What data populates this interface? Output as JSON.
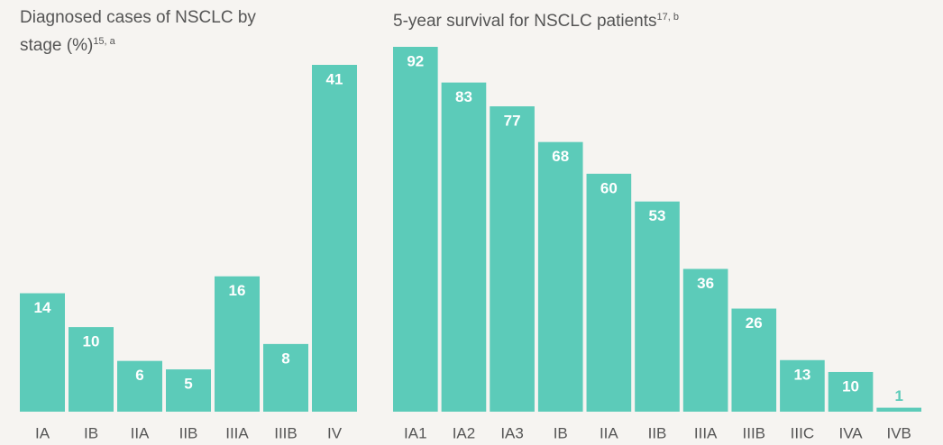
{
  "chart_data": [
    {
      "type": "bar",
      "title": "Diagnosed cases of NSCLC by stage (%)",
      "title_superscript": "15, a",
      "categories": [
        "IA",
        "IB",
        "IIA",
        "IIB",
        "IIIA",
        "IIIB",
        "IV"
      ],
      "values": [
        14,
        10,
        6,
        5,
        16,
        8,
        41
      ],
      "color": "#5ccbb9"
    },
    {
      "type": "bar",
      "title": "5-year survival for NSCLC patients",
      "title_superscript": "17, b",
      "categories": [
        "IA1",
        "IA2",
        "IA3",
        "IB",
        "IIA",
        "IIB",
        "IIIA",
        "IIIB",
        "IIIC",
        "IVA",
        "IVB"
      ],
      "values": [
        92,
        83,
        77,
        68,
        60,
        53,
        36,
        26,
        13,
        10,
        1
      ],
      "color": "#5ccbb9"
    }
  ]
}
